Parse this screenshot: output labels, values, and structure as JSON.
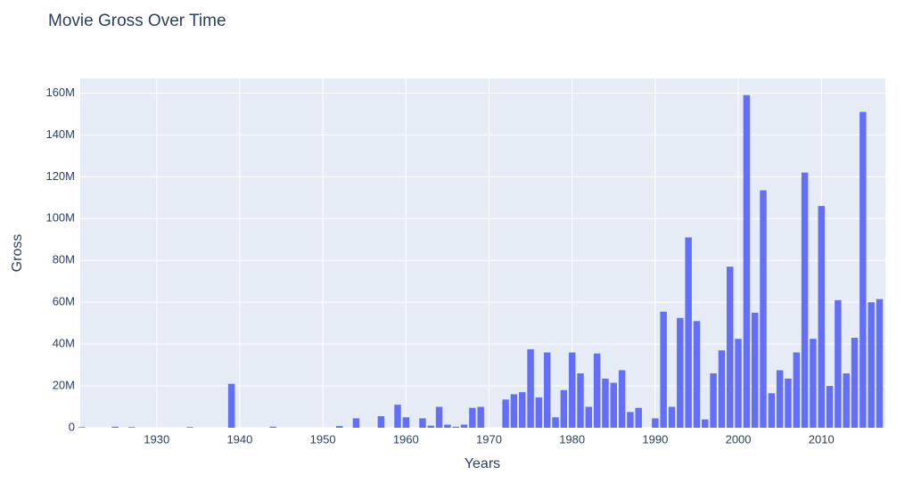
{
  "chart_data": {
    "type": "bar",
    "title": "Movie Gross Over Time",
    "x_label": "Years",
    "y_label": "Gross",
    "color": "#636efa",
    "grid": true,
    "x": [
      1921,
      1925,
      1927,
      1934,
      1939,
      1944,
      1952,
      1954,
      1957,
      1959,
      1960,
      1962,
      1963,
      1964,
      1965,
      1966,
      1967,
      1968,
      1969,
      1972,
      1973,
      1974,
      1975,
      1976,
      1977,
      1978,
      1979,
      1980,
      1981,
      1982,
      1983,
      1984,
      1985,
      1986,
      1987,
      1988,
      1990,
      1991,
      1992,
      1993,
      1994,
      1995,
      1996,
      1997,
      1998,
      1999,
      2000,
      2001,
      2002,
      2003,
      2004,
      2005,
      2006,
      2007,
      2008,
      2009,
      2010,
      2011,
      2012,
      2013,
      2014,
      2015,
      2016,
      2017
    ],
    "values": [
      300000,
      500000,
      300000,
      300000,
      21000000,
      500000,
      800000,
      4500000,
      5500000,
      11000000,
      5000000,
      4500000,
      1000000,
      10000000,
      1500000,
      500000,
      1500000,
      9500000,
      10000000,
      13500000,
      16000000,
      17000000,
      37500000,
      14500000,
      36000000,
      5000000,
      18000000,
      36000000,
      26000000,
      10000000,
      35500000,
      23500000,
      21500000,
      27500000,
      7500000,
      9500000,
      4500000,
      55500000,
      10000000,
      52500000,
      91000000,
      51000000,
      4000000,
      26000000,
      37000000,
      77000000,
      42500000,
      159000000,
      55000000,
      113500000,
      16500000,
      27500000,
      23500000,
      36000000,
      122000000,
      42500000,
      106000000,
      20000000,
      61000000,
      26000000,
      43000000,
      151000000,
      60000000,
      61500000
    ],
    "xlim": [
      1920.8,
      2017.7
    ],
    "xticks": [
      1930,
      1940,
      1950,
      1960,
      1970,
      1980,
      1990,
      2000,
      2010
    ],
    "ylim": [
      0,
      167000000
    ],
    "yticks": [
      0,
      {
        "value": 20000000,
        "label": "20M"
      },
      {
        "value": 40000000,
        "label": "40M"
      },
      {
        "value": 60000000,
        "label": "60M"
      },
      {
        "value": 80000000,
        "label": "80M"
      },
      {
        "value": 100000000,
        "label": "100M"
      },
      {
        "value": 120000000,
        "label": "120M"
      },
      {
        "value": 140000000,
        "label": "140M"
      },
      {
        "value": 160000000,
        "label": "160M"
      }
    ]
  }
}
